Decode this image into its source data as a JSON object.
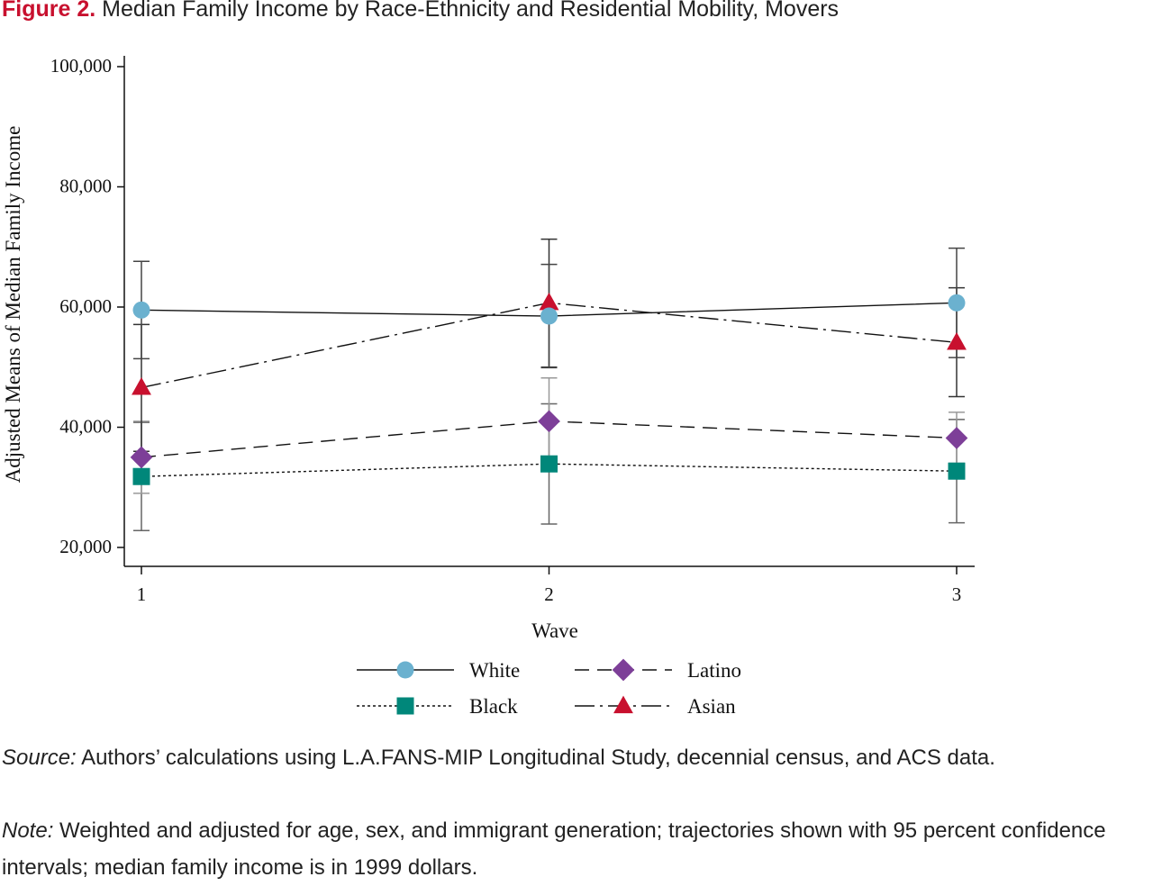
{
  "figure": {
    "label": "Figure 2.",
    "title": "Median Family Income by Race-Ethnicity and Residential Mobility, Movers"
  },
  "footer": {
    "source_label": "Source:",
    "source_text": "Authors’ calculations using L.A.FANS-MIP Longitudinal Study, decennial census, and ACS data.",
    "note_label": "Note:",
    "note_text": "Weighted and adjusted for age, sex, and immigrant generation; trajectories shown with 95 percent confidence intervals; median family income is in 1999 dollars."
  },
  "chart_data": {
    "type": "line",
    "x": [
      1,
      2,
      3
    ],
    "xlabel": "Wave",
    "ylabel": "Adjusted Means of Median Family Income",
    "ylim": [
      20000,
      100000
    ],
    "xticks": [
      "1",
      "2",
      "3"
    ],
    "yticks": [
      "20,000",
      "40,000",
      "60,000",
      "80,000",
      "100,000"
    ],
    "grid": false,
    "legend_position": "bottom",
    "series": [
      {
        "name": "White",
        "marker": "circle",
        "line": "solid",
        "color": "#6bb1cf",
        "values": [
          59500,
          58500,
          60700
        ],
        "ci_low": [
          51400,
          49900,
          51600
        ],
        "ci_high": [
          67600,
          67100,
          69800
        ]
      },
      {
        "name": "Latino",
        "marker": "diamond",
        "line": "dashed",
        "color": "#7d3f98",
        "values": [
          35000,
          41000,
          38200
        ],
        "ci_low": [
          29000,
          33900,
          34000
        ],
        "ci_high": [
          41000,
          48200,
          42500
        ]
      },
      {
        "name": "Black",
        "marker": "square",
        "line": "dotted",
        "color": "#00877a",
        "values": [
          31800,
          33900,
          32700
        ],
        "ci_low": [
          22800,
          23900,
          24100
        ],
        "ci_high": [
          40800,
          43900,
          41300
        ]
      },
      {
        "name": "Asian",
        "marker": "triangle",
        "line": "dashdot",
        "color": "#c8102e",
        "values": [
          46600,
          60700,
          54100
        ],
        "ci_low": [
          36000,
          50000,
          45100
        ],
        "ci_high": [
          57100,
          71300,
          63200
        ]
      }
    ]
  }
}
